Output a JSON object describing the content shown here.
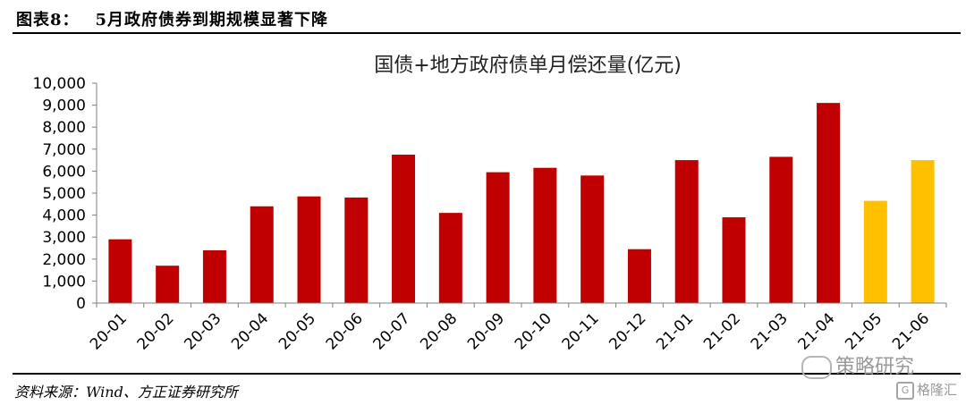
{
  "figure": {
    "label": "图表8：",
    "heading": "5月政府债券到期规模显著下降",
    "source": "资料来源：Wind、方正证券研究所"
  },
  "watermarks": {
    "wechat": "策略研究",
    "gelonghui": "格隆汇"
  },
  "chart_data": {
    "type": "bar",
    "title": "国债+地方政府债单月偿还量(亿元)",
    "xlabel": "",
    "ylabel": "",
    "ylim": [
      0,
      10000
    ],
    "yticks": [
      0,
      1000,
      2000,
      3000,
      4000,
      5000,
      6000,
      7000,
      8000,
      9000,
      10000
    ],
    "ytick_labels": [
      "0",
      "1,000",
      "2,000",
      "3,000",
      "4,000",
      "5,000",
      "6,000",
      "7,000",
      "8,000",
      "9,000",
      "10,000"
    ],
    "grid": false,
    "legend": "none",
    "categories": [
      "20-01",
      "20-02",
      "20-03",
      "20-04",
      "20-05",
      "20-06",
      "20-07",
      "20-08",
      "20-09",
      "20-10",
      "20-11",
      "20-12",
      "21-01",
      "21-02",
      "21-03",
      "21-04",
      "21-05",
      "21-06"
    ],
    "values": [
      2900,
      1700,
      2400,
      4400,
      4850,
      4800,
      6750,
      4100,
      5950,
      6150,
      5800,
      2450,
      6500,
      3900,
      6650,
      9100,
      4650,
      6500
    ],
    "colors": [
      "#c00000",
      "#c00000",
      "#c00000",
      "#c00000",
      "#c00000",
      "#c00000",
      "#c00000",
      "#c00000",
      "#c00000",
      "#c00000",
      "#c00000",
      "#c00000",
      "#c00000",
      "#c00000",
      "#c00000",
      "#c00000",
      "#ffc000",
      "#ffc000"
    ]
  }
}
